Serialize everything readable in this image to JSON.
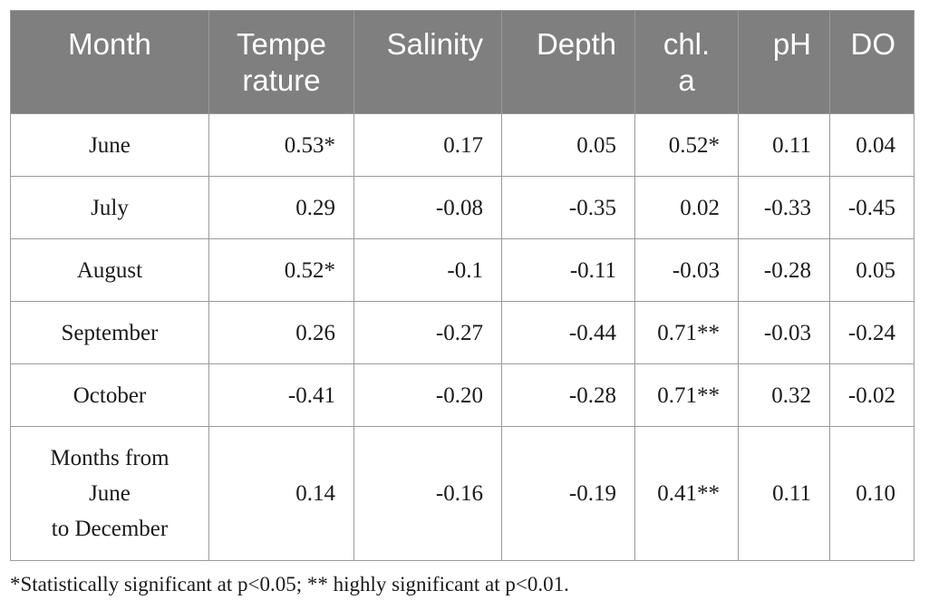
{
  "table": {
    "headers": [
      "Month",
      "Tempe\nrature",
      "Salinity",
      "Depth",
      "chl.\na",
      "pH",
      "DO"
    ],
    "rows": [
      [
        "June",
        "0.53*",
        "0.17",
        "0.05",
        "0.52*",
        "0.11",
        "0.04"
      ],
      [
        "July",
        "0.29",
        "-0.08",
        "-0.35",
        "0.02",
        "-0.33",
        "-0.45"
      ],
      [
        "August",
        "0.52*",
        "-0.1",
        "-0.11",
        "-0.03",
        "-0.28",
        "0.05"
      ],
      [
        "September",
        "0.26",
        "-0.27",
        "-0.44",
        "0.71**",
        "-0.03",
        "-0.24"
      ],
      [
        "October",
        "-0.41",
        "-0.20",
        "-0.28",
        "0.71**",
        "0.32",
        "-0.02"
      ],
      [
        "Months from\nJune\nto December",
        "0.14",
        "-0.16",
        "-0.19",
        "0.41**",
        "0.11",
        "0.10"
      ]
    ]
  },
  "colors": {
    "header_bg": "#7f7f7f",
    "header_text": "#ffffff",
    "border": "#9a9a9a"
  },
  "footnote": "*Statistically significant at p<0.05; ** highly significant at p<0.01."
}
